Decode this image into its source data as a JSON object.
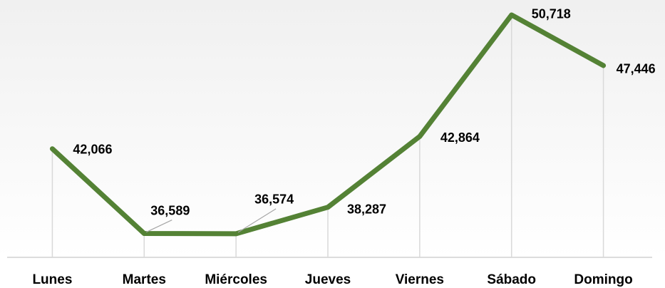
{
  "chart_data": {
    "type": "line",
    "categories": [
      "Lunes",
      "Martes",
      "Miércoles",
      "Jueves",
      "Viernes",
      "Sábado",
      "Domingo"
    ],
    "values": [
      42066,
      36589,
      36574,
      38287,
      42864,
      50718,
      47446
    ],
    "value_labels": [
      "42,066",
      "36,589",
      "36,574",
      "38,287",
      "42,864",
      "50,718",
      "47,446"
    ],
    "color": "#548235",
    "ylim": [
      35000,
      51500
    ]
  }
}
